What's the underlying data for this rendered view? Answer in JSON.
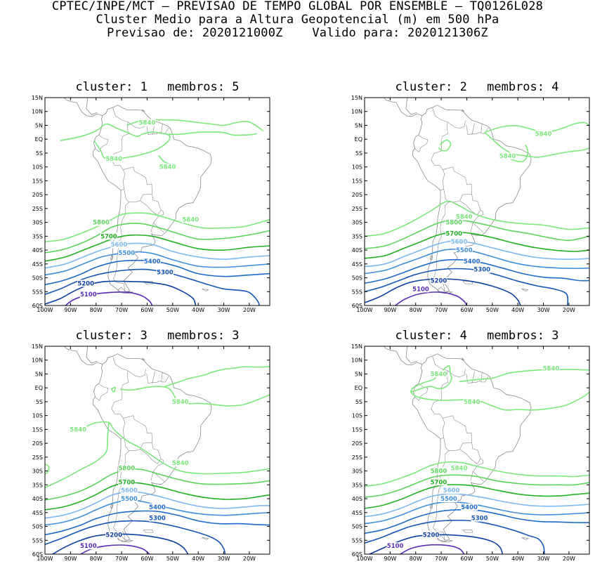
{
  "header": {
    "line1": "CPTEC/INPE/MCT – PREVISAO DE TEMPO GLOBAL POR ENSEMBLE – TQ0126L028",
    "line2": "Cluster Medio para a Altura Geopotencial (m) em 500 hPa",
    "line3_label1": "Previsao de:",
    "line3_value1": "2020121000Z",
    "line3_label2": "Valido para:",
    "line3_value2": "2020121306Z"
  },
  "axes": {
    "lat_labels": [
      "15N",
      "10N",
      "5N",
      "EQ",
      "5S",
      "10S",
      "15S",
      "20S",
      "25S",
      "30S",
      "35S",
      "40S",
      "45S",
      "50S",
      "55S",
      "60S"
    ],
    "lon_labels": [
      "100W",
      "90W",
      "80W",
      "70W",
      "60W",
      "50W",
      "40W",
      "30W",
      "20W"
    ]
  },
  "contour_colors": {
    "5840": "#7ce87c",
    "5800": "#5dd35d",
    "5700": "#23b023",
    "5600": "#7eb8f0",
    "5500": "#3f8fdc",
    "5400": "#1f6ac8",
    "5300": "#1656b4",
    "5200": "#0d3fa0",
    "5100": "#5a2db5"
  },
  "panels": [
    {
      "cluster_label": "cluster:",
      "cluster_num": "1",
      "membros_label": "membros:",
      "membros_num": "5",
      "labels": [
        {
          "t": "5840",
          "lon": -60,
          "lat": 6
        },
        {
          "t": "5840",
          "lon": -73,
          "lat": -7
        },
        {
          "t": "5840",
          "lon": -52,
          "lat": -10
        },
        {
          "t": "5840",
          "lon": -43,
          "lat": -29
        },
        {
          "t": "5800",
          "lon": -78,
          "lat": -30
        },
        {
          "t": "5700",
          "lon": -75,
          "lat": -35
        },
        {
          "t": "5600",
          "lon": -71,
          "lat": -38
        },
        {
          "t": "5500",
          "lon": -68,
          "lat": -41
        },
        {
          "t": "5400",
          "lon": -58,
          "lat": -44
        },
        {
          "t": "5300",
          "lon": -53,
          "lat": -48
        },
        {
          "t": "5200",
          "lon": -84,
          "lat": -52
        },
        {
          "t": "5100",
          "lon": -83,
          "lat": -56
        }
      ]
    },
    {
      "cluster_label": "cluster:",
      "cluster_num": "2",
      "membros_label": "membros:",
      "membros_num": "4",
      "labels": [
        {
          "t": "5840",
          "lon": -30,
          "lat": 2
        },
        {
          "t": "5840",
          "lon": -44,
          "lat": -6
        },
        {
          "t": "5840",
          "lon": -61,
          "lat": -28
        },
        {
          "t": "5800",
          "lon": -65,
          "lat": -30
        },
        {
          "t": "5700",
          "lon": -65,
          "lat": -34
        },
        {
          "t": "5600",
          "lon": -63,
          "lat": -37
        },
        {
          "t": "5500",
          "lon": -61,
          "lat": -40
        },
        {
          "t": "5400",
          "lon": -58,
          "lat": -44
        },
        {
          "t": "5300",
          "lon": -54,
          "lat": -47
        },
        {
          "t": "5200",
          "lon": -71,
          "lat": -51
        },
        {
          "t": "5100",
          "lon": -78,
          "lat": -54
        }
      ]
    },
    {
      "cluster_label": "cluster:",
      "cluster_num": "3",
      "membros_label": "membros:",
      "membros_num": "3",
      "labels": [
        {
          "t": "5840",
          "lon": -47,
          "lat": -5
        },
        {
          "t": "5840",
          "lon": -87,
          "lat": -15
        },
        {
          "t": "5840",
          "lon": -47,
          "lat": -27
        },
        {
          "t": "5800",
          "lon": -68,
          "lat": -29
        },
        {
          "t": "5700",
          "lon": -68,
          "lat": -34
        },
        {
          "t": "5600",
          "lon": -67,
          "lat": -37
        },
        {
          "t": "5500",
          "lon": -67,
          "lat": -40
        },
        {
          "t": "5400",
          "lon": -56,
          "lat": -43
        },
        {
          "t": "5300",
          "lon": -56,
          "lat": -47
        },
        {
          "t": "5200",
          "lon": -73,
          "lat": -53
        },
        {
          "t": "5100",
          "lon": -83,
          "lat": -57
        }
      ]
    },
    {
      "cluster_label": "cluster:",
      "cluster_num": "4",
      "membros_label": "membros:",
      "membros_num": "3",
      "labels": [
        {
          "t": "5840",
          "lon": -71,
          "lat": 5
        },
        {
          "t": "5840",
          "lon": -58,
          "lat": -5
        },
        {
          "t": "5840",
          "lon": -27,
          "lat": 7
        },
        {
          "t": "5840",
          "lon": -63,
          "lat": -29
        },
        {
          "t": "5800",
          "lon": -71,
          "lat": -30
        },
        {
          "t": "5700",
          "lon": -71,
          "lat": -34
        },
        {
          "t": "5600",
          "lon": -66,
          "lat": -37
        },
        {
          "t": "5500",
          "lon": -67,
          "lat": -40
        },
        {
          "t": "5400",
          "lon": -59,
          "lat": -43
        },
        {
          "t": "5300",
          "lon": -55,
          "lat": -47
        },
        {
          "t": "5200",
          "lon": -74,
          "lat": -53
        },
        {
          "t": "5100",
          "lon": -88,
          "lat": -57
        }
      ]
    }
  ]
}
